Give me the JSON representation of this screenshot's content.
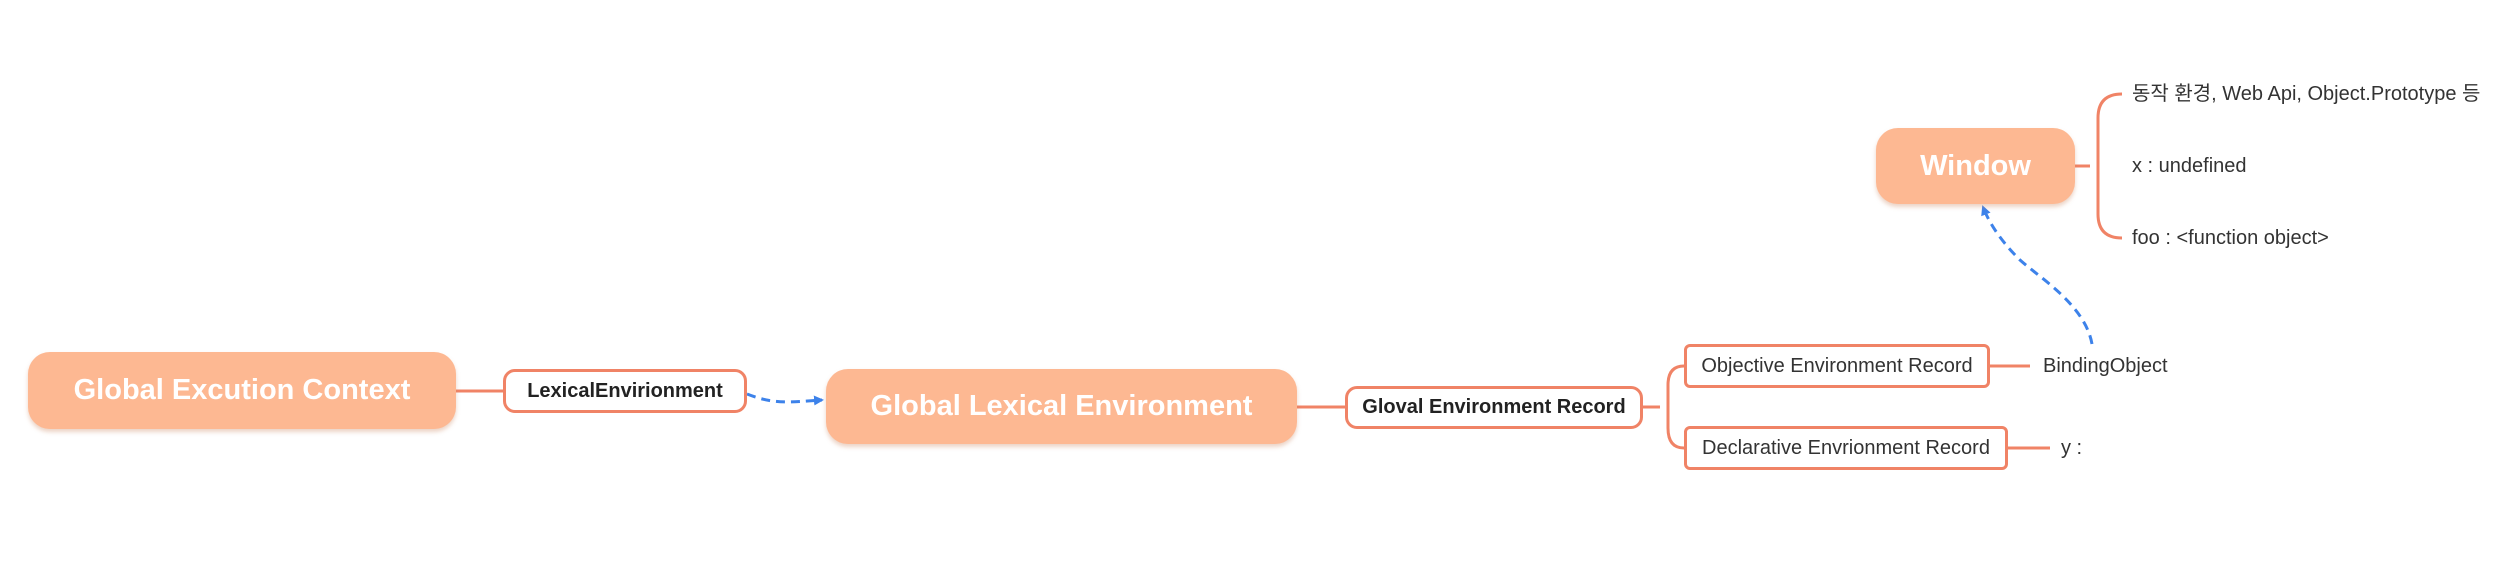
{
  "nodes": {
    "global_execution_context": "Global Excution Context",
    "lexical_environment": "LexicalEnvirionment",
    "global_lexical_environment": "Global Lexical Environment",
    "global_environment_record": "Gloval Environment Record",
    "objective_environment_record": "Objective Environment Record",
    "declarative_environment_record": "Declarative Envrionment Record",
    "binding_object": "BindingObject",
    "declarative_value": "y :",
    "window": "Window"
  },
  "window_items": [
    "동작 환경, Web Api, Object.Prototype 등",
    "x : undefined",
    "foo : <function object>"
  ],
  "colors": {
    "node_fill": "#fdb892",
    "branch_line": "#f08366",
    "reference_arrow": "#3d82ea"
  }
}
